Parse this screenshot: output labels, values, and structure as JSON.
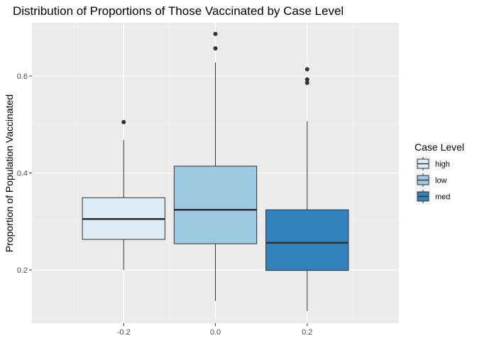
{
  "chart_data": {
    "type": "boxplot",
    "title": "Distribution of Proportions of Those Vaccinated by Case Level",
    "xlabel": "",
    "ylabel": "Proportion of Population Vaccinated",
    "xlim": [
      -0.4,
      0.4
    ],
    "ylim": [
      0.09,
      0.71
    ],
    "x_ticks": [
      -0.2,
      0.0,
      0.2
    ],
    "x_tick_labels": [
      "-0.2",
      "0.0",
      "0.2"
    ],
    "y_ticks": [
      0.2,
      0.4,
      0.6
    ],
    "y_tick_labels": [
      "0.2",
      "0.4",
      "0.6"
    ],
    "grid": true,
    "legend": {
      "title": "Case Level",
      "position": "right"
    },
    "series": [
      {
        "name": "high",
        "x": -0.2,
        "color": "#deebf7",
        "whisker_low": 0.2,
        "q1": 0.263,
        "median": 0.305,
        "q3": 0.349,
        "whisker_high": 0.468,
        "outliers": [
          0.505
        ]
      },
      {
        "name": "low",
        "x": 0.0,
        "color": "#9ecae1",
        "whisker_low": 0.136,
        "q1": 0.254,
        "median": 0.324,
        "q3": 0.414,
        "whisker_high": 0.628,
        "outliers": [
          0.657,
          0.687
        ]
      },
      {
        "name": "med",
        "x": 0.2,
        "color": "#3182bd",
        "whisker_low": 0.115,
        "q1": 0.199,
        "median": 0.256,
        "q3": 0.324,
        "whisker_high": 0.507,
        "outliers": [
          0.586,
          0.593,
          0.614
        ]
      }
    ]
  }
}
